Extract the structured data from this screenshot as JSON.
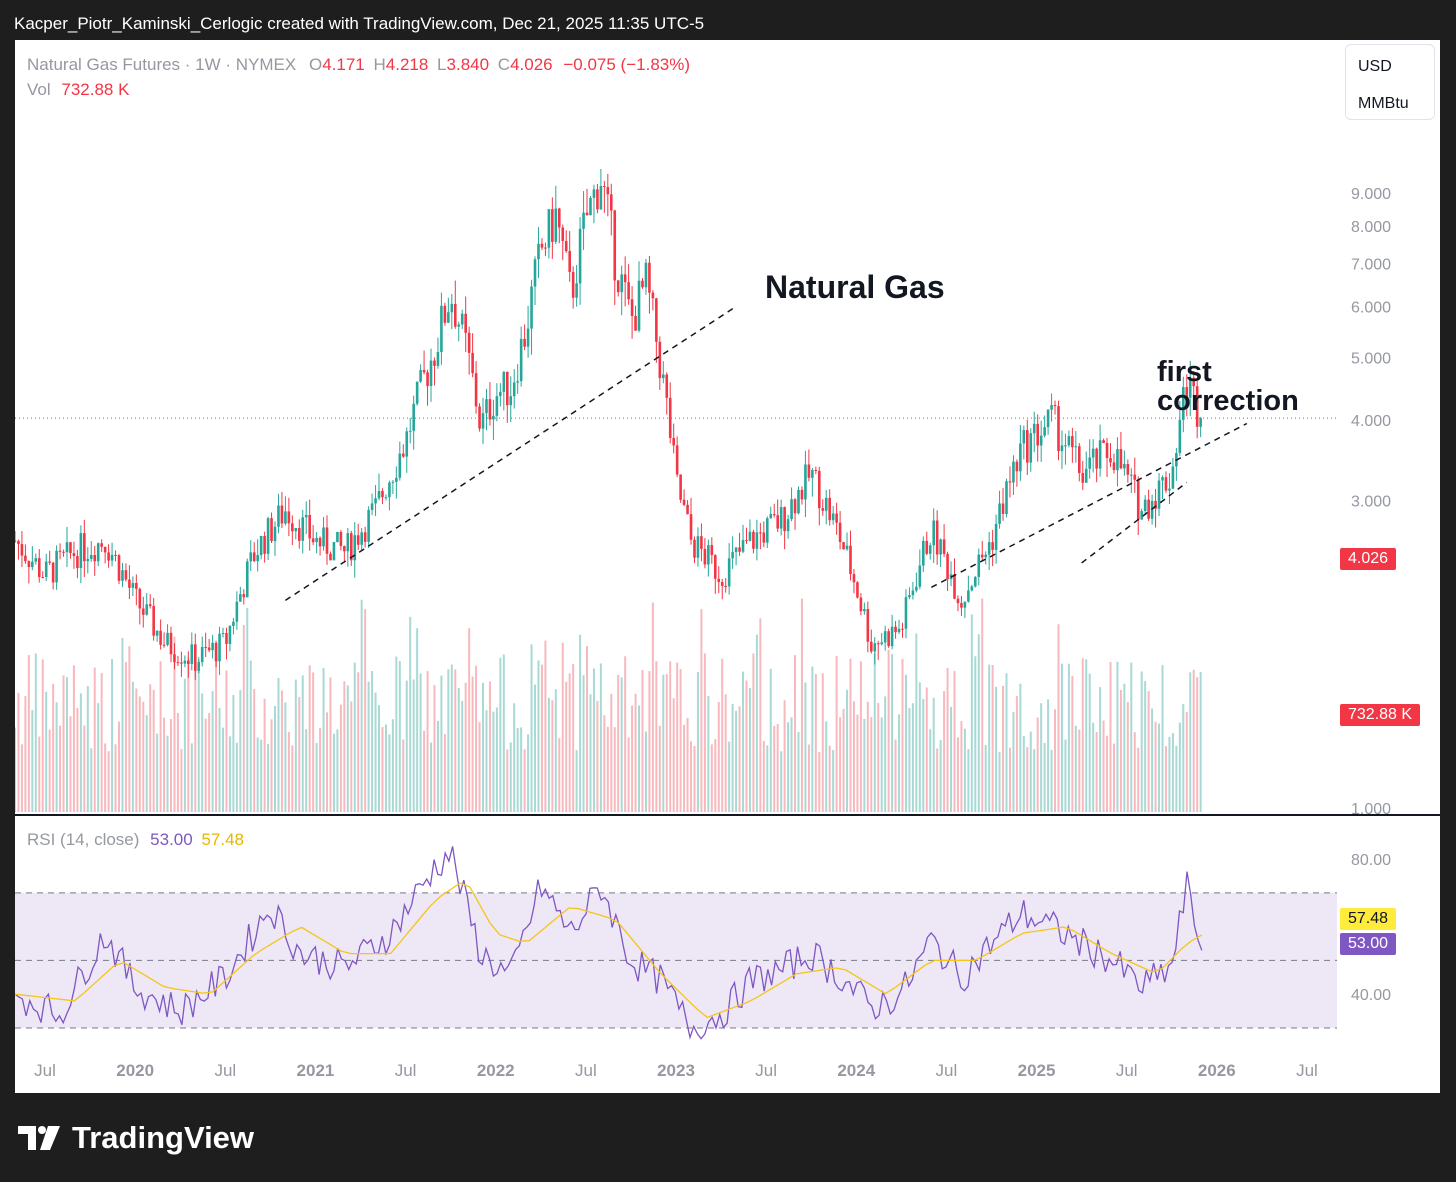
{
  "watermark": "Kacper_Piotr_Kaminski_Cerlogic created with TradingView.com, Dec 21, 2025 11:35 UTC-5",
  "header": {
    "symbol": "Natural Gas Futures · 1W · NYMEX",
    "open_label": "O",
    "open": "4.171",
    "high_label": "H",
    "high": "4.218",
    "low_label": "L",
    "low": "3.840",
    "close_label": "C",
    "close": "4.026",
    "change": "−0.075 (−1.83%)",
    "vol_label": "Vol",
    "vol": "732.88 K"
  },
  "units": {
    "currency": "USD",
    "unit": "MMBtu"
  },
  "badges": {
    "last_price": "4.026",
    "volume": "732.88 K",
    "rsi_ma": "57.48",
    "rsi": "53.00"
  },
  "rsi_header": {
    "label": "RSI (14, close)",
    "rsi": "53.00",
    "ma": "57.48"
  },
  "footer": {
    "brand": "TradingView"
  },
  "colors": {
    "up": "#26a69a",
    "down": "#f23645",
    "rsi": "#7e57c2",
    "rsi_ma": "#f5c518",
    "rsi_band": "#ede7f6"
  },
  "chart_data": [
    {
      "type": "candlestick",
      "title": "Natural Gas",
      "price_axis": {
        "ticks": [
          1,
          3,
          4,
          5,
          6,
          7,
          8,
          9
        ],
        "tick_labels": [
          "1.000",
          "3.000",
          "4.000",
          "5.000",
          "6.000",
          "7.000",
          "8.000",
          "9.000"
        ],
        "ylim": [
          0.6,
          10.3
        ]
      },
      "time_axis": {
        "labels": [
          "Jul",
          "2020",
          "Jul",
          "2021",
          "Jul",
          "2022",
          "Jul",
          "2023",
          "Jul",
          "2024",
          "Jul",
          "2025",
          "Jul",
          "2026",
          "Jul"
        ],
        "range": [
          "2019-05",
          "2026-09"
        ]
      },
      "last_price": 4.026,
      "annotations": [
        "Natural Gas",
        "first",
        "correction"
      ],
      "trendlines": [
        {
          "style": "dashed",
          "from": [
            "2020-11",
            2.1
          ],
          "to": [
            "2023-05",
            6.0
          ]
        },
        {
          "style": "dashed",
          "from": [
            "2024-06",
            2.2
          ],
          "to": [
            "2026-03",
            3.95
          ]
        },
        {
          "style": "dashed",
          "from": [
            "2025-04",
            2.4
          ],
          "to": [
            "2025-11",
            3.2
          ]
        }
      ],
      "price_path": [
        [
          "2019-05",
          2.6
        ],
        [
          "2019-07",
          2.3
        ],
        [
          "2019-09",
          2.5
        ],
        [
          "2019-11",
          2.6
        ],
        [
          "2020-01",
          2.1
        ],
        [
          "2020-03",
          1.8
        ],
        [
          "2020-05",
          1.7
        ],
        [
          "2020-07",
          1.8
        ],
        [
          "2020-09",
          2.5
        ],
        [
          "2020-11",
          2.9
        ],
        [
          "2021-01",
          2.6
        ],
        [
          "2021-03",
          2.5
        ],
        [
          "2021-05",
          2.9
        ],
        [
          "2021-07",
          3.7
        ],
        [
          "2021-09",
          5.2
        ],
        [
          "2021-10",
          6.3
        ],
        [
          "2021-11",
          5.2
        ],
        [
          "2021-12",
          3.9
        ],
        [
          "2022-01",
          4.4
        ],
        [
          "2022-02",
          4.5
        ],
        [
          "2022-03",
          5.5
        ],
        [
          "2022-04",
          7.3
        ],
        [
          "2022-05",
          8.3
        ],
        [
          "2022-06",
          6.2
        ],
        [
          "2022-07",
          8.2
        ],
        [
          "2022-08",
          9.5
        ],
        [
          "2022-09",
          7.0
        ],
        [
          "2022-10",
          5.7
        ],
        [
          "2022-11",
          6.5
        ],
        [
          "2022-12",
          4.8
        ],
        [
          "2023-01",
          3.2
        ],
        [
          "2023-02",
          2.6
        ],
        [
          "2023-04",
          2.3
        ],
        [
          "2023-06",
          2.6
        ],
        [
          "2023-08",
          2.8
        ],
        [
          "2023-10",
          3.3
        ],
        [
          "2023-12",
          2.6
        ],
        [
          "2024-02",
          1.8
        ],
        [
          "2024-04",
          1.9
        ],
        [
          "2024-06",
          2.7
        ],
        [
          "2024-08",
          2.1
        ],
        [
          "2024-10",
          2.6
        ],
        [
          "2024-12",
          3.6
        ],
        [
          "2025-02",
          4.0
        ],
        [
          "2025-04",
          3.3
        ],
        [
          "2025-06",
          3.6
        ],
        [
          "2025-08",
          2.9
        ],
        [
          "2025-10",
          3.3
        ],
        [
          "2025-11",
          4.6
        ],
        [
          "2025-12",
          4.026
        ]
      ],
      "volume": {
        "last": "732.88 K"
      }
    },
    {
      "type": "line",
      "title": "RSI (14, close)",
      "y_ticks": [
        40,
        80
      ],
      "y_tick_labels": [
        "40.00",
        "80.00"
      ],
      "bands": [
        30,
        50,
        70
      ],
      "ylim": [
        22,
        88
      ],
      "series": [
        {
          "name": "RSI",
          "last": 53.0,
          "points": [
            [
              "2019-05",
              40
            ],
            [
              "2019-08",
              34
            ],
            [
              "2019-11",
              58
            ],
            [
              "2020-01",
              42
            ],
            [
              "2020-04",
              35
            ],
            [
              "2020-07",
              45
            ],
            [
              "2020-10",
              66
            ],
            [
              "2020-12",
              52
            ],
            [
              "2021-03",
              48
            ],
            [
              "2021-06",
              58
            ],
            [
              "2021-09",
              78
            ],
            [
              "2021-10",
              82
            ],
            [
              "2021-12",
              52
            ],
            [
              "2022-02",
              45
            ],
            [
              "2022-04",
              72
            ],
            [
              "2022-06",
              58
            ],
            [
              "2022-08",
              72
            ],
            [
              "2022-10",
              50
            ],
            [
              "2022-12",
              44
            ],
            [
              "2023-02",
              30
            ],
            [
              "2023-04",
              34
            ],
            [
              "2023-06",
              44
            ],
            [
              "2023-08",
              47
            ],
            [
              "2023-10",
              52
            ],
            [
              "2023-12",
              45
            ],
            [
              "2024-02",
              36
            ],
            [
              "2024-04",
              40
            ],
            [
              "2024-06",
              56
            ],
            [
              "2024-08",
              45
            ],
            [
              "2024-10",
              55
            ],
            [
              "2024-12",
              64
            ],
            [
              "2025-02",
              60
            ],
            [
              "2025-04",
              55
            ],
            [
              "2025-06",
              50
            ],
            [
              "2025-08",
              42
            ],
            [
              "2025-10",
              48
            ],
            [
              "2025-11",
              72
            ],
            [
              "2025-12",
              53
            ]
          ]
        },
        {
          "name": "MA",
          "last": 57.48,
          "points": [
            [
              "2019-05",
              40
            ],
            [
              "2019-09",
              38
            ],
            [
              "2019-12",
              50
            ],
            [
              "2020-03",
              42
            ],
            [
              "2020-06",
              40
            ],
            [
              "2020-09",
              52
            ],
            [
              "2020-12",
              60
            ],
            [
              "2021-03",
              52
            ],
            [
              "2021-06",
              52
            ],
            [
              "2021-09",
              68
            ],
            [
              "2021-11",
              74
            ],
            [
              "2022-01",
              58
            ],
            [
              "2022-03",
              55
            ],
            [
              "2022-06",
              66
            ],
            [
              "2022-09",
              62
            ],
            [
              "2022-12",
              46
            ],
            [
              "2023-03",
              33
            ],
            [
              "2023-06",
              38
            ],
            [
              "2023-09",
              46
            ],
            [
              "2023-12",
              48
            ],
            [
              "2024-03",
              40
            ],
            [
              "2024-06",
              50
            ],
            [
              "2024-09",
              50
            ],
            [
              "2024-12",
              58
            ],
            [
              "2025-03",
              60
            ],
            [
              "2025-06",
              52
            ],
            [
              "2025-09",
              46
            ],
            [
              "2025-11",
              55
            ],
            [
              "2025-12",
              57.48
            ]
          ]
        }
      ]
    }
  ]
}
